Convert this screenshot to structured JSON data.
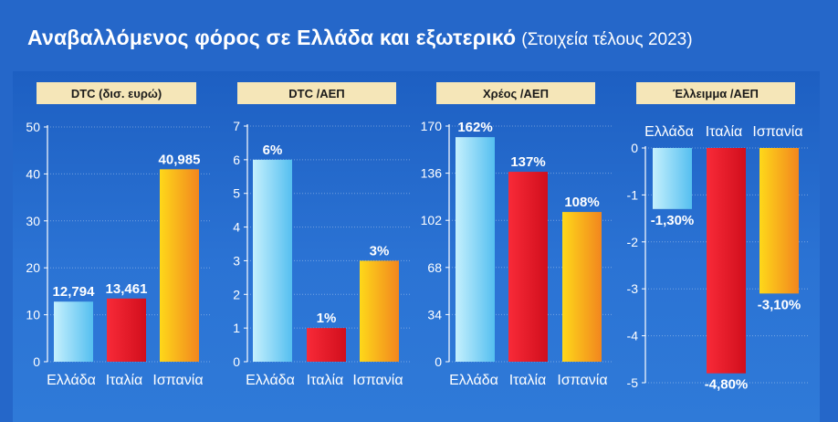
{
  "title": "Αναβαλλόμενος φόρος σε Ελλάδα και εξωτερικό",
  "subtitle": "(Στοιχεία τέλους 2023)",
  "colors": {
    "background": "#2567c9",
    "header_bar": "#f5e6b8",
    "greece_bar": [
      "#b3e9fb",
      "#5fc4f1"
    ],
    "italy_bar": [
      "#f42434",
      "#d9101f"
    ],
    "spain_bar": [
      "#fdd21a",
      "#f28a1e"
    ]
  },
  "chart_data": [
    {
      "type": "bar",
      "title": "DTC (δισ. ευρώ)",
      "categories": [
        "Ελλάδα",
        "Ιταλία",
        "Ισπανία"
      ],
      "values": [
        12.794,
        13.461,
        40.985
      ],
      "value_labels": [
        "12,794",
        "13,461",
        "40,985"
      ],
      "yticks": [
        "0",
        "10",
        "20",
        "30",
        "40",
        "50"
      ],
      "ylim": [
        0,
        50
      ],
      "grid": true
    },
    {
      "type": "bar",
      "title": "DTC /ΑΕΠ",
      "categories": [
        "Ελλάδα",
        "Ιταλία",
        "Ισπανία"
      ],
      "values": [
        6,
        1,
        3
      ],
      "value_labels": [
        "6%",
        "1%",
        "3%"
      ],
      "yticks": [
        "0",
        "1",
        "2",
        "3",
        "4",
        "5",
        "6",
        "7"
      ],
      "ylim": [
        0,
        7
      ],
      "grid": true
    },
    {
      "type": "bar",
      "title": "Χρέος /ΑΕΠ",
      "categories": [
        "Ελλάδα",
        "Ιταλία",
        "Ισπανία"
      ],
      "values": [
        162,
        137,
        108
      ],
      "value_labels": [
        "162%",
        "137%",
        "108%"
      ],
      "yticks": [
        "0",
        "34",
        "68",
        "102",
        "136",
        "170"
      ],
      "ylim": [
        0,
        170
      ],
      "grid": true
    },
    {
      "type": "bar",
      "title": "Έλλειμμα /ΑΕΠ",
      "categories": [
        "Ελλάδα",
        "Ιταλία",
        "Ισπανία"
      ],
      "values": [
        -1.3,
        -4.8,
        -3.1
      ],
      "value_labels": [
        "-1,30%",
        "-4,80%",
        "-3,10%"
      ],
      "yticks": [
        "0",
        "-1",
        "-2",
        "-3",
        "-4",
        "-5"
      ],
      "ylim": [
        -5,
        0
      ],
      "grid": true
    }
  ]
}
